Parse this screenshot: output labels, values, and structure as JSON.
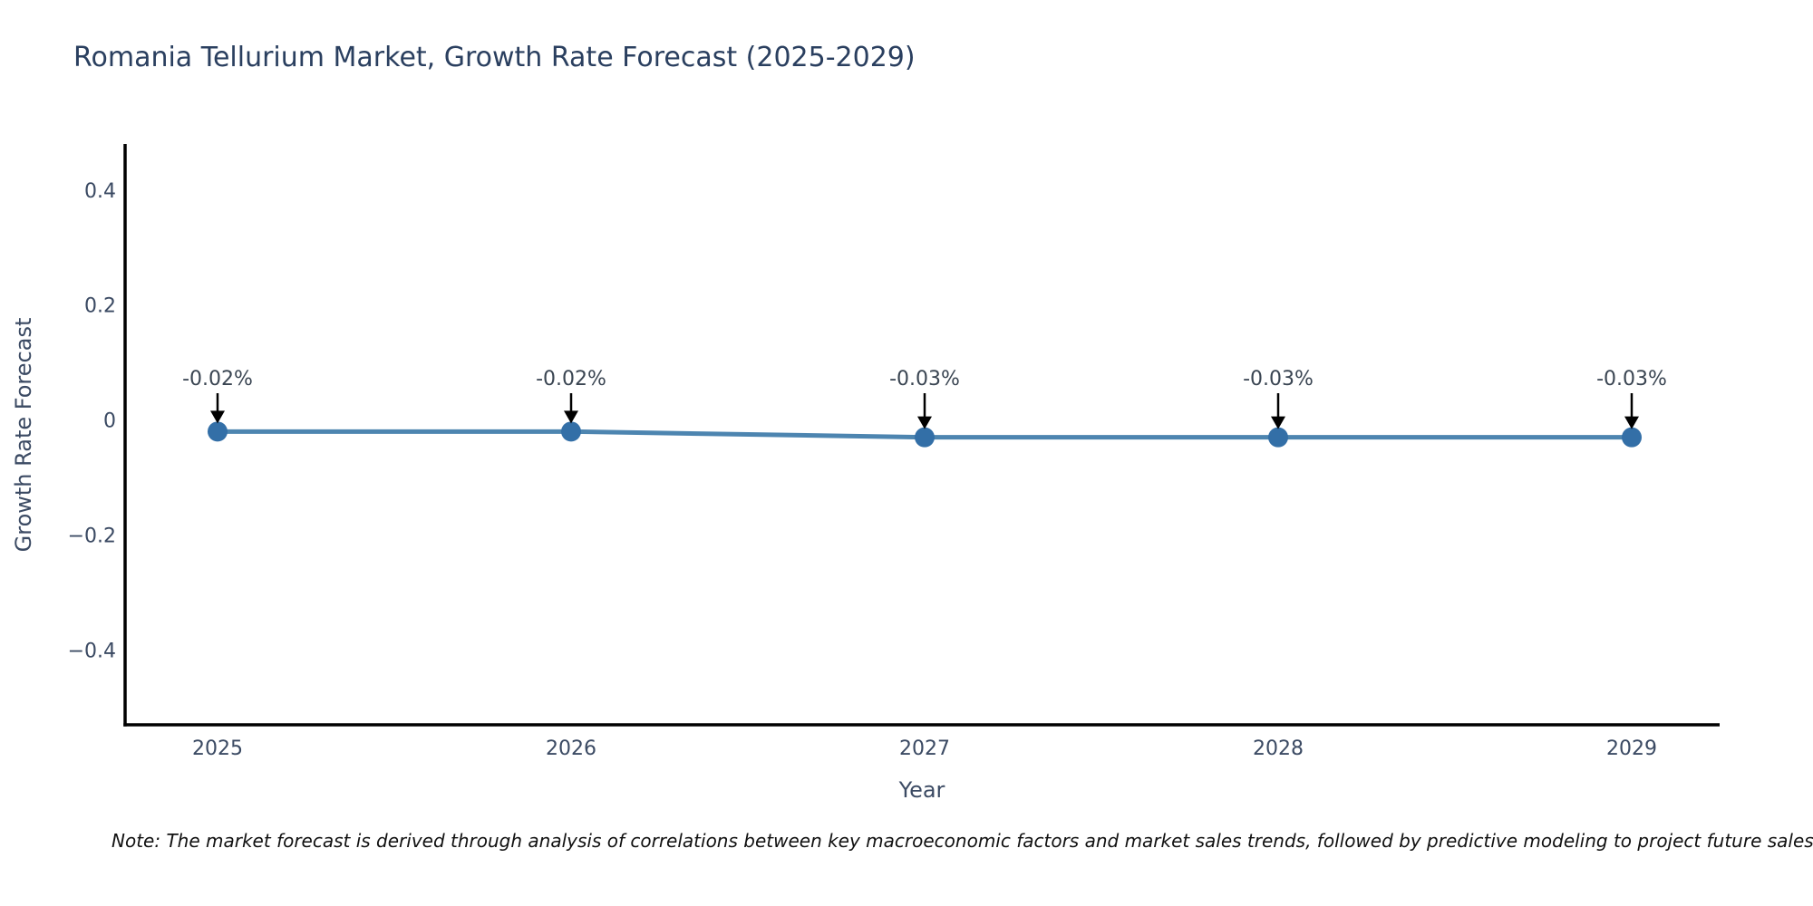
{
  "figure": {
    "note": "Note: The market forecast is derived through analysis of correlations between key macroeconomic factors and market sales trends, followed by predictive modeling to project future sales"
  },
  "chart_data": {
    "type": "line",
    "title": "Romania Tellurium Market, Growth Rate Forecast (2025-2029)",
    "xlabel": "Year",
    "ylabel": "Growth Rate Forecast",
    "categories": [
      "2025",
      "2026",
      "2027",
      "2028",
      "2029"
    ],
    "series": [
      {
        "name": "Growth Rate Forecast",
        "values": [
          -0.02,
          -0.02,
          -0.03,
          -0.03,
          -0.03
        ]
      }
    ],
    "point_labels": [
      "-0.02%",
      "-0.02%",
      "-0.03%",
      "-0.03%",
      "-0.03%"
    ],
    "yticks": [
      0.4,
      0.2,
      0,
      -0.2,
      -0.4
    ],
    "ytick_labels": [
      "0.4",
      "0.2",
      "0",
      "−0.2",
      "−0.4"
    ],
    "ylim": [
      -0.53,
      0.48
    ],
    "grid": false,
    "legend_position": "none",
    "colors": {
      "line": "#4d85b0",
      "marker": "#336fa7",
      "axis": "#000000",
      "title": "#2a3f5f",
      "tick_text": "#3b4a63",
      "annotation_text": "#3a4552",
      "annotation_arrow": "#000000",
      "background": "#ffffff"
    }
  }
}
